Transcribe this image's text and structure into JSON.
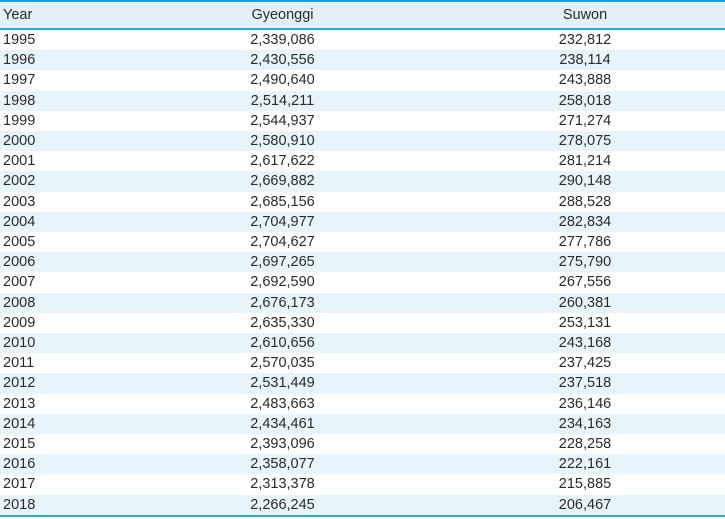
{
  "chart_data": {
    "type": "table",
    "title": "",
    "columns": [
      "Year",
      "Gyeonggi",
      "Suwon"
    ],
    "rows": [
      [
        "1995",
        "2,339,086",
        "232,812"
      ],
      [
        "1996",
        "2,430,556",
        "238,114"
      ],
      [
        "1997",
        "2,490,640",
        "243,888"
      ],
      [
        "1998",
        "2,514,211",
        "258,018"
      ],
      [
        "1999",
        "2,544,937",
        "271,274"
      ],
      [
        "2000",
        "2,580,910",
        "278,075"
      ],
      [
        "2001",
        "2,617,622",
        "281,214"
      ],
      [
        "2002",
        "2,669,882",
        "290,148"
      ],
      [
        "2003",
        "2,685,156",
        "288,528"
      ],
      [
        "2004",
        "2,704,977",
        "282,834"
      ],
      [
        "2005",
        "2,704,627",
        "277,786"
      ],
      [
        "2006",
        "2,697,265",
        "275,790"
      ],
      [
        "2007",
        "2,692,590",
        "267,556"
      ],
      [
        "2008",
        "2,676,173",
        "260,381"
      ],
      [
        "2009",
        "2,635,330",
        "253,131"
      ],
      [
        "2010",
        "2,610,656",
        "243,168"
      ],
      [
        "2011",
        "2,570,035",
        "237,425"
      ],
      [
        "2012",
        "2,531,449",
        "237,518"
      ],
      [
        "2013",
        "2,483,663",
        "236,146"
      ],
      [
        "2014",
        "2,434,461",
        "234,163"
      ],
      [
        "2015",
        "2,393,096",
        "228,258"
      ],
      [
        "2016",
        "2,358,077",
        "222,161"
      ],
      [
        "2017",
        "2,313,378",
        "215,885"
      ],
      [
        "2018",
        "2,266,245",
        "206,467"
      ]
    ],
    "series": [
      {
        "name": "Gyeonggi",
        "values": [
          2339086,
          2430556,
          2490640,
          2514211,
          2544937,
          2580910,
          2617622,
          2669882,
          2685156,
          2704977,
          2704627,
          2697265,
          2692590,
          2676173,
          2635330,
          2610656,
          2570035,
          2531449,
          2483663,
          2434461,
          2393096,
          2358077,
          2313378,
          2266245
        ]
      },
      {
        "name": "Suwon",
        "values": [
          232812,
          238114,
          243888,
          258018,
          271274,
          278075,
          281214,
          290148,
          288528,
          282834,
          277786,
          275790,
          267556,
          260381,
          253131,
          243168,
          237425,
          237518,
          236146,
          234163,
          228258,
          222161,
          215885,
          206467
        ]
      }
    ],
    "x": [
      1995,
      1996,
      1997,
      1998,
      1999,
      2000,
      2001,
      2002,
      2003,
      2004,
      2005,
      2006,
      2007,
      2008,
      2009,
      2010,
      2011,
      2012,
      2013,
      2014,
      2015,
      2016,
      2017,
      2018
    ]
  },
  "colors": {
    "accent_line": "#29a9e1",
    "header_bg": "#e4f0f9",
    "stripe_bg": "#e8f4fb",
    "text": "#2b2a29"
  }
}
